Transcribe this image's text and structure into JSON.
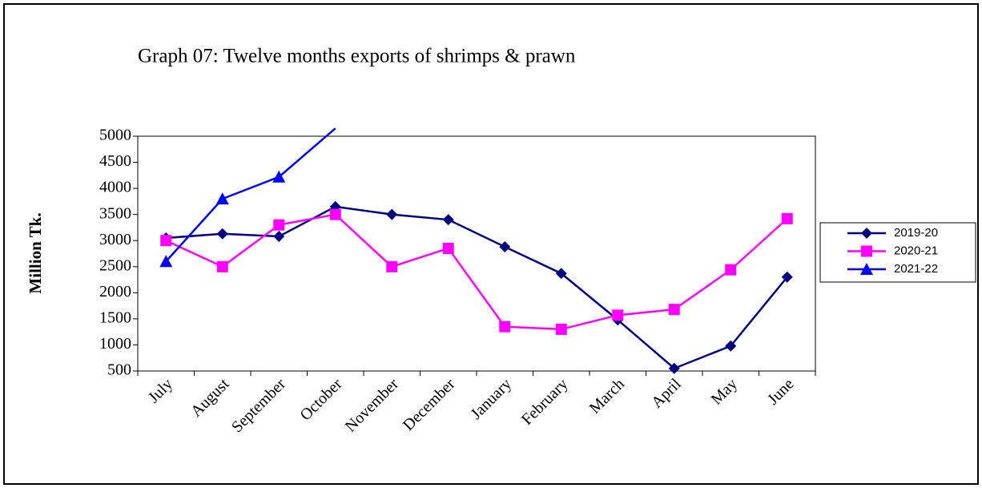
{
  "chart_data": {
    "type": "line",
    "title": "Graph 07: Twelve months exports of shrimps & prawn",
    "y_label": "Million Tk.",
    "categories": [
      "July",
      "August",
      "September",
      "October",
      "November",
      "December",
      "January",
      "February",
      "March",
      "April",
      "May",
      "June"
    ],
    "series": [
      {
        "name": "2019-20",
        "color": "#000080",
        "marker": "diamond",
        "values": [
          3050,
          3130,
          3080,
          3650,
          3500,
          3400,
          2880,
          2370,
          1480,
          550,
          980,
          2300
        ]
      },
      {
        "name": "2020-21",
        "color": "#ff00ff",
        "marker": "square",
        "values": [
          3000,
          2500,
          3300,
          3500,
          2500,
          2850,
          1350,
          1300,
          1570,
          1680,
          2440,
          3420
        ]
      },
      {
        "name": "2021-22",
        "color": "#0000ff",
        "marker": "triangle",
        "values": [
          2600,
          3800,
          4220,
          5150,
          null,
          null,
          null,
          null,
          null,
          null,
          null,
          null
        ]
      }
    ],
    "ylim": [
      500,
      5000
    ],
    "yticks": [
      500,
      1000,
      1500,
      2000,
      2500,
      3000,
      3500,
      4000,
      4500,
      5000
    ],
    "legend": "right"
  }
}
